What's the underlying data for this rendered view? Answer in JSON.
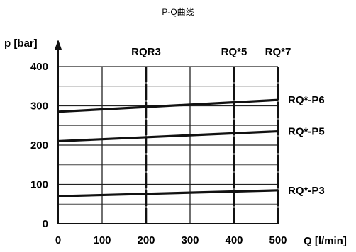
{
  "chart_data": {
    "type": "line",
    "title": "P-Q曲线",
    "xlabel": "Q [l/min]",
    "ylabel": "p [bar]",
    "xlim": [
      0,
      500
    ],
    "ylim": [
      0,
      400
    ],
    "grid": true,
    "x_ticks": [
      0,
      100,
      200,
      300,
      400,
      500
    ],
    "y_ticks": [
      0,
      100,
      200,
      300,
      400
    ],
    "x_tick_labels": [
      "0",
      "100",
      "200",
      "300",
      "400",
      "500"
    ],
    "y_tick_labels": [
      "0",
      "100",
      "200",
      "300",
      "400"
    ],
    "y_minor_step": 50,
    "model_markers": [
      {
        "label": "RQR3",
        "x": 200
      },
      {
        "label": "RQ*5",
        "x": 400
      },
      {
        "label": "RQ*7",
        "x": 500
      }
    ],
    "series": [
      {
        "name": "RQ*-P6",
        "x": [
          0,
          500
        ],
        "y": [
          285,
          315
        ]
      },
      {
        "name": "RQ*-P5",
        "x": [
          0,
          500
        ],
        "y": [
          210,
          235
        ]
      },
      {
        "name": "RQ*-P3",
        "x": [
          0,
          500
        ],
        "y": [
          70,
          85
        ]
      }
    ]
  }
}
